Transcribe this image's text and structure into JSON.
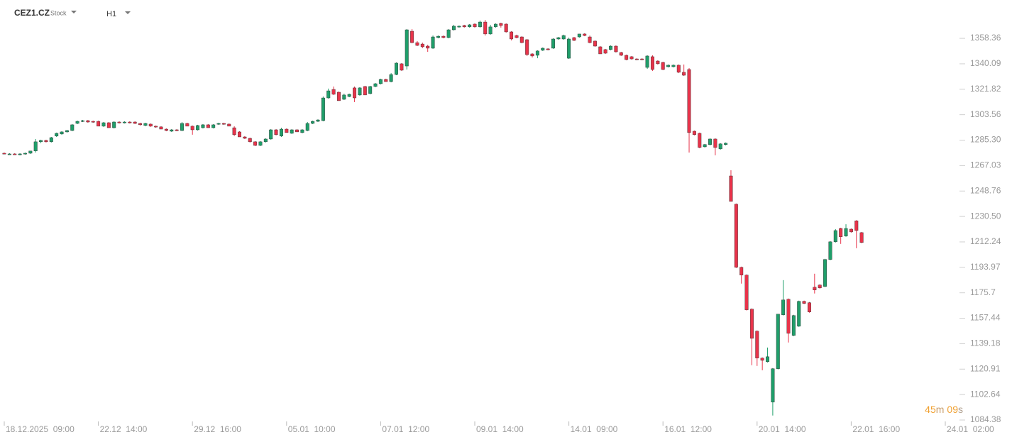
{
  "header": {
    "symbol": "CEZ1.CZ",
    "kind": "Stock",
    "interval": "H1"
  },
  "countdown": [
    "45",
    "m",
    "09",
    "s"
  ],
  "chart_data": {
    "type": "candlestick",
    "up_color": "#1f9e6a",
    "down_color": "#e8334a",
    "ylim": [
      1084.38,
      1385.9
    ],
    "yticks": [
      1358.36,
      1340.09,
      1321.82,
      1303.56,
      {
        "value": 1285.3,
        "label": "1285.30"
      },
      1267.03,
      1248.76,
      {
        "value": 1230.5,
        "label": "1230.50"
      },
      1212.24,
      1193.97,
      1175.7,
      1157.44,
      1139.18,
      1120.91,
      1102.64,
      1084.38
    ],
    "categories": [
      "18.12.2025  09:00",
      null,
      null,
      null,
      null,
      null,
      null,
      null,
      null,
      null,
      null,
      null,
      null,
      null,
      null,
      null,
      null,
      null,
      "22.12  14:00",
      null,
      null,
      null,
      null,
      null,
      null,
      null,
      null,
      null,
      null,
      null,
      null,
      null,
      null,
      null,
      null,
      null,
      "29.12  16:00",
      null,
      null,
      null,
      null,
      null,
      null,
      null,
      null,
      null,
      null,
      null,
      null,
      null,
      null,
      null,
      null,
      null,
      "05.01  10:00",
      null,
      null,
      null,
      null,
      null,
      null,
      null,
      null,
      null,
      null,
      null,
      null,
      null,
      null,
      null,
      null,
      null,
      "07.01  12:00",
      null,
      null,
      null,
      null,
      null,
      null,
      null,
      null,
      null,
      null,
      null,
      null,
      null,
      null,
      null,
      null,
      null,
      "09.01  14:00",
      null,
      null,
      null,
      null,
      null,
      null,
      null,
      null,
      null,
      null,
      null,
      null,
      null,
      null,
      null,
      null,
      null,
      "14.01  09:00",
      null,
      null,
      null,
      null,
      null,
      null,
      null,
      null,
      null,
      null,
      null,
      null,
      null,
      null,
      null,
      null,
      null,
      "16.01  12:00",
      null,
      null,
      null,
      null,
      null,
      null,
      null,
      null,
      null,
      null,
      null,
      null,
      null,
      null,
      null,
      null,
      null,
      "20.01  14:00",
      null,
      null,
      null,
      null,
      null,
      null,
      null,
      null,
      null,
      null,
      null,
      null,
      null,
      null,
      null,
      null,
      null,
      "22.01  16:00",
      null,
      null,
      null,
      null,
      null,
      null,
      null,
      null,
      null,
      null,
      null,
      null,
      null,
      null,
      null,
      null,
      null,
      "24.01  02:00"
    ],
    "candles": [
      [
        1275.9,
        1276.4,
        1275.4,
        1275.4
      ],
      [
        1275.4,
        1275.9,
        1274.9,
        1275.4
      ],
      [
        1275.4,
        1275.9,
        1274.9,
        1274.9
      ],
      [
        1274.9,
        1275.9,
        1274.4,
        1275.4
      ],
      [
        1275.4,
        1276.4,
        1274.9,
        1275.9
      ],
      [
        1275.9,
        1277.5,
        1275.4,
        1277.5
      ],
      [
        1277.5,
        1286.1,
        1276.4,
        1284.1
      ],
      [
        1284.1,
        1285.6,
        1283.1,
        1285.1
      ],
      [
        1285.1,
        1285.6,
        1283.6,
        1284.1
      ],
      [
        1284.1,
        1287.6,
        1283.6,
        1287.1
      ],
      [
        1288.2,
        1290.7,
        1287.6,
        1290.2
      ],
      [
        1289.7,
        1291.7,
        1289.2,
        1291.2
      ],
      [
        1291.2,
        1292.7,
        1290.7,
        1292.2
      ],
      [
        1292.2,
        1296.8,
        1291.7,
        1296.3
      ],
      [
        1297.3,
        1299.3,
        1296.8,
        1298.8
      ],
      [
        1298.8,
        1299.8,
        1298.3,
        1299.3
      ],
      [
        1299.3,
        1299.8,
        1297.8,
        1298.3
      ],
      [
        1298.8,
        1299.3,
        1297.8,
        1298.3
      ],
      [
        1298.8,
        1299.3,
        1295.3,
        1295.3
      ],
      [
        1295.3,
        1298.3,
        1294.8,
        1297.8
      ],
      [
        1297.8,
        1298.3,
        1294.2,
        1294.2
      ],
      [
        1294.2,
        1298.8,
        1293.7,
        1298.3
      ],
      [
        1298.3,
        1298.8,
        1297.3,
        1297.8
      ],
      [
        1297.8,
        1298.8,
        1297.3,
        1298.3
      ],
      [
        1298.3,
        1298.8,
        1297.3,
        1297.8
      ],
      [
        1298.3,
        1298.8,
        1296.8,
        1297.3
      ],
      [
        1297.3,
        1297.8,
        1295.8,
        1296.3
      ],
      [
        1295.8,
        1297.8,
        1295.3,
        1297.3
      ],
      [
        1296.8,
        1297.3,
        1294.8,
        1295.3
      ],
      [
        1295.3,
        1295.8,
        1294.2,
        1294.8
      ],
      [
        1294.8,
        1295.3,
        1293.2,
        1293.2
      ],
      [
        1293.2,
        1293.7,
        1291.7,
        1292.2
      ],
      [
        1291.7,
        1293.2,
        1291.2,
        1292.7
      ],
      [
        1292.7,
        1293.2,
        1291.7,
        1292.2
      ],
      [
        1292.2,
        1298.3,
        1291.7,
        1297.3
      ],
      [
        1297.3,
        1297.8,
        1295.3,
        1295.3
      ],
      [
        1295.3,
        1295.8,
        1289.2,
        1292.7
      ],
      [
        1292.7,
        1296.3,
        1292.2,
        1295.8
      ],
      [
        1294.2,
        1296.8,
        1293.7,
        1296.3
      ],
      [
        1296.3,
        1296.8,
        1294.2,
        1294.2
      ],
      [
        1294.2,
        1296.8,
        1293.7,
        1296.3
      ],
      [
        1296.8,
        1297.8,
        1296.3,
        1297.3
      ],
      [
        1297.3,
        1297.8,
        1296.3,
        1296.8
      ],
      [
        1296.8,
        1297.3,
        1295.3,
        1295.3
      ],
      [
        1294.2,
        1295.3,
        1288.2,
        1289.2
      ],
      [
        1291.2,
        1291.7,
        1287.6,
        1287.6
      ],
      [
        1287.6,
        1288.2,
        1286.1,
        1286.6
      ],
      [
        1286.6,
        1287.1,
        1283.6,
        1284.1
      ],
      [
        1284.1,
        1284.6,
        1281.0,
        1281.5
      ],
      [
        1281.5,
        1284.6,
        1281.0,
        1284.1
      ],
      [
        1284.1,
        1286.6,
        1283.6,
        1286.1
      ],
      [
        1286.1,
        1293.2,
        1285.6,
        1292.7
      ],
      [
        1292.7,
        1293.2,
        1288.7,
        1289.2
      ],
      [
        1288.2,
        1294.2,
        1287.6,
        1293.2
      ],
      [
        1293.2,
        1293.7,
        1290.7,
        1290.7
      ],
      [
        1290.2,
        1293.2,
        1289.7,
        1292.7
      ],
      [
        1292.7,
        1293.2,
        1291.2,
        1291.2
      ],
      [
        1290.7,
        1293.2,
        1290.2,
        1292.7
      ],
      [
        1292.2,
        1298.3,
        1291.7,
        1297.3
      ],
      [
        1297.3,
        1299.3,
        1296.8,
        1298.8
      ],
      [
        1298.8,
        1300.3,
        1298.3,
        1299.8
      ],
      [
        1299.3,
        1316.6,
        1298.8,
        1315.6
      ],
      [
        1315.6,
        1322.3,
        1315.1,
        1320.7
      ],
      [
        1321.7,
        1323.8,
        1317.7,
        1318.2
      ],
      [
        1319.7,
        1320.2,
        1313.6,
        1313.6
      ],
      [
        1314.6,
        1318.7,
        1314.1,
        1317.7
      ],
      [
        1316.6,
        1318.7,
        1316.1,
        1318.2
      ],
      [
        1322.8,
        1323.8,
        1312.6,
        1315.6
      ],
      [
        1317.7,
        1323.3,
        1317.2,
        1322.8
      ],
      [
        1323.8,
        1324.3,
        1317.7,
        1317.7
      ],
      [
        1318.7,
        1324.3,
        1318.2,
        1323.8
      ],
      [
        1323.8,
        1326.3,
        1323.3,
        1325.8
      ],
      [
        1325.8,
        1329.4,
        1325.3,
        1328.9
      ],
      [
        1328.9,
        1329.4,
        1327.3,
        1327.3
      ],
      [
        1327.3,
        1333.4,
        1326.8,
        1332.4
      ],
      [
        1332.4,
        1341.1,
        1331.9,
        1340.6
      ],
      [
        1340.1,
        1340.6,
        1335.0,
        1335.5
      ],
      [
        1338.5,
        1365.0,
        1336.0,
        1364.5
      ],
      [
        1363.5,
        1365.0,
        1354.8,
        1355.3
      ],
      [
        1355.3,
        1356.4,
        1352.8,
        1353.3
      ],
      [
        1354.3,
        1355.3,
        1351.3,
        1352.3
      ],
      [
        1352.8,
        1353.8,
        1348.7,
        1351.3
      ],
      [
        1351.3,
        1360.4,
        1350.8,
        1359.4
      ],
      [
        1358.9,
        1360.4,
        1358.4,
        1359.9
      ],
      [
        1359.9,
        1360.4,
        1358.4,
        1358.9
      ],
      [
        1358.9,
        1365.0,
        1358.4,
        1364.5
      ],
      [
        1364.5,
        1368.1,
        1364.0,
        1367.1
      ],
      [
        1366.6,
        1367.6,
        1366.1,
        1367.1
      ],
      [
        1367.6,
        1368.1,
        1366.1,
        1366.6
      ],
      [
        1366.6,
        1368.6,
        1366.1,
        1368.1
      ],
      [
        1368.6,
        1369.1,
        1366.1,
        1366.6
      ],
      [
        1366.6,
        1371.1,
        1366.1,
        1370.1
      ],
      [
        1370.1,
        1371.6,
        1360.4,
        1361.5
      ],
      [
        1361.5,
        1368.1,
        1361.0,
        1366.6
      ],
      [
        1366.6,
        1369.1,
        1366.1,
        1368.6
      ],
      [
        1369.1,
        1369.6,
        1366.1,
        1367.6
      ],
      [
        1368.6,
        1369.1,
        1362.5,
        1363.0
      ],
      [
        1363.0,
        1363.5,
        1356.9,
        1357.9
      ],
      [
        1360.4,
        1361.0,
        1358.4,
        1358.9
      ],
      [
        1359.4,
        1359.9,
        1354.8,
        1355.3
      ],
      [
        1357.4,
        1357.9,
        1345.7,
        1346.7
      ],
      [
        1347.2,
        1347.7,
        1344.6,
        1345.7
      ],
      [
        1346.2,
        1349.8,
        1344.1,
        1349.3
      ],
      [
        1349.8,
        1351.8,
        1349.3,
        1351.3
      ],
      [
        1350.8,
        1351.3,
        1349.8,
        1350.3
      ],
      [
        1351.3,
        1358.4,
        1350.8,
        1357.9
      ],
      [
        1357.9,
        1359.4,
        1357.4,
        1358.9
      ],
      [
        1357.9,
        1361.0,
        1357.4,
        1360.4
      ],
      [
        1344.1,
        1358.9,
        1343.6,
        1357.9
      ],
      [
        1358.9,
        1359.4,
        1356.4,
        1356.9
      ],
      [
        1359.4,
        1361.5,
        1358.9,
        1361.5
      ],
      [
        1361.5,
        1362.0,
        1359.9,
        1360.4
      ],
      [
        1359.4,
        1360.4,
        1354.8,
        1355.3
      ],
      [
        1356.4,
        1356.9,
        1352.3,
        1352.8
      ],
      [
        1352.3,
        1352.8,
        1347.2,
        1347.2
      ],
      [
        1350.3,
        1350.8,
        1347.2,
        1347.7
      ],
      [
        1350.3,
        1353.3,
        1349.8,
        1352.8
      ],
      [
        1352.8,
        1353.3,
        1348.2,
        1348.7
      ],
      [
        1348.2,
        1348.7,
        1345.7,
        1346.2
      ],
      [
        1346.2,
        1346.7,
        1342.6,
        1343.1
      ],
      [
        1345.2,
        1345.7,
        1343.1,
        1343.6
      ],
      [
        1343.6,
        1344.1,
        1342.6,
        1343.1
      ],
      [
        1343.6,
        1344.1,
        1342.6,
        1343.1
      ],
      [
        1337.5,
        1346.2,
        1336.5,
        1345.7
      ],
      [
        1345.2,
        1346.2,
        1335.0,
        1336.0
      ],
      [
        1342.1,
        1342.6,
        1339.6,
        1340.1
      ],
      [
        1341.1,
        1341.6,
        1335.5,
        1336.0
      ],
      [
        1338.0,
        1339.6,
        1337.5,
        1339.1
      ],
      [
        1338.0,
        1339.6,
        1337.5,
        1339.1
      ],
      [
        1339.1,
        1339.6,
        1333.4,
        1334.0
      ],
      [
        1334.0,
        1339.6,
        1331.4,
        1331.9
      ],
      [
        1336.0,
        1337.0,
        1276.4,
        1290.7
      ],
      [
        1291.7,
        1292.2,
        1288.7,
        1289.2
      ],
      [
        1290.2,
        1290.7,
        1279.5,
        1280.0
      ],
      [
        1280.5,
        1282.6,
        1280.0,
        1282.1
      ],
      [
        1282.1,
        1286.6,
        1281.5,
        1286.1
      ],
      [
        1286.1,
        1286.6,
        1274.4,
        1280.0
      ],
      [
        1279.0,
        1283.1,
        1278.5,
        1282.6
      ],
      [
        1282.1,
        1283.6,
        1281.5,
        1283.1
      ],
      [
        1259.6,
        1263.7,
        1241.3,
        1241.3
      ],
      [
        1239.3,
        1239.8,
        1193.5,
        1194.0
      ],
      [
        1194.0,
        1194.5,
        1182.3,
        1188.4
      ],
      [
        1188.4,
        1188.9,
        1163.0,
        1163.5
      ],
      [
        1164.0,
        1164.5,
        1123.7,
        1143.0
      ],
      [
        1148.2,
        1148.7,
        1123.2,
        1128.8
      ],
      [
        1128.8,
        1129.3,
        1120.1,
        1127.2
      ],
      [
        1126.2,
        1136.4,
        1125.7,
        1129.8
      ],
      [
        1097.2,
        1121.7,
        1087.6,
        1121.2
      ],
      [
        1121.2,
        1160.4,
        1120.7,
        1160.4
      ],
      [
        1159.9,
        1184.8,
        1159.4,
        1170.6
      ],
      [
        1171.1,
        1171.6,
        1140.0,
        1146.6
      ],
      [
        1145.1,
        1159.9,
        1144.6,
        1159.4
      ],
      [
        1151.7,
        1170.1,
        1151.2,
        1169.6
      ],
      [
        1169.6,
        1170.1,
        1167.6,
        1168.1
      ],
      [
        1168.6,
        1169.1,
        1161.4,
        1161.9
      ],
      [
        1179.7,
        1189.4,
        1175.2,
        1177.7
      ],
      [
        1181.3,
        1181.8,
        1178.7,
        1179.2
      ],
      [
        1180.3,
        1200.1,
        1179.7,
        1199.6
      ],
      [
        1199.6,
        1212.8,
        1199.1,
        1212.3
      ],
      [
        1212.3,
        1221.4,
        1211.8,
        1220.4
      ],
      [
        1221.9,
        1222.4,
        1210.8,
        1215.9
      ],
      [
        1216.4,
        1224.9,
        1215.9,
        1221.9
      ],
      [
        1221.4,
        1221.9,
        1218.9,
        1219.4
      ],
      [
        1227.4,
        1227.9,
        1207.7,
        1220.4
      ],
      [
        1218.9,
        1219.4,
        1211.3,
        1211.8
      ],
      null,
      null,
      null,
      null,
      null,
      null,
      null,
      null,
      null,
      null,
      null,
      null,
      null,
      null,
      null,
      null
    ]
  }
}
